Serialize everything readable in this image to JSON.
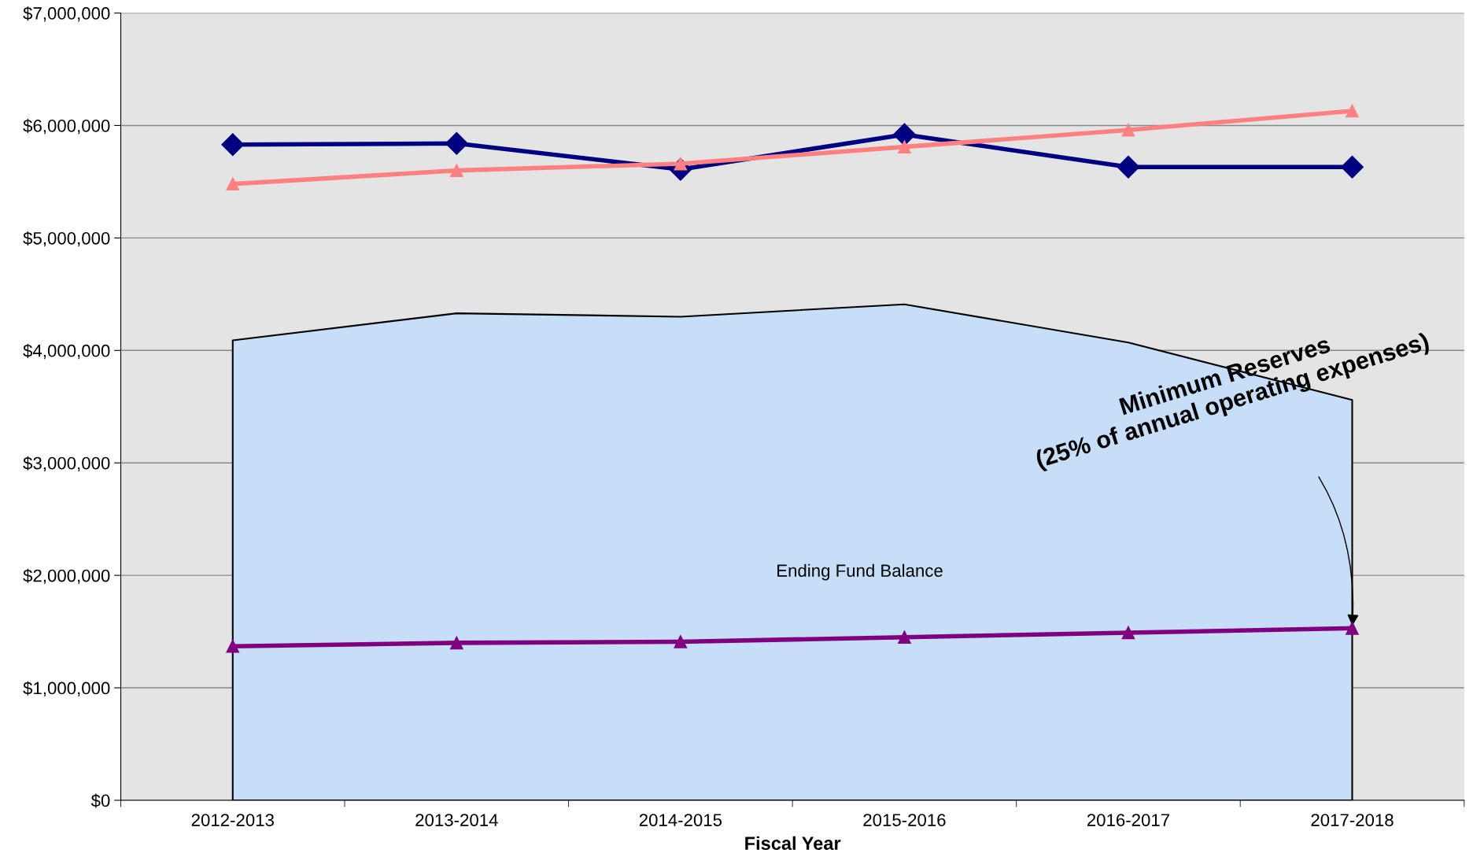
{
  "chart_data": {
    "type": "line",
    "xlabel": "Fiscal Year",
    "categories": [
      "2012-2013",
      "2013-2014",
      "2014-2015",
      "2015-2016",
      "2016-2017",
      "2017-2018"
    ],
    "series": [
      {
        "name": "Ending Fund Balance",
        "type": "area",
        "color": "#c6def7",
        "values": [
          4090000,
          4330000,
          4300000,
          4410000,
          4070000,
          3560000
        ]
      },
      {
        "color": "#000080",
        "marker": "diamond",
        "values": [
          5830000,
          5840000,
          5610000,
          5920000,
          5630000,
          5630000
        ]
      },
      {
        "color": "#ff8080",
        "marker": "triangle",
        "values": [
          5480000,
          5600000,
          5660000,
          5810000,
          5960000,
          6130000
        ]
      },
      {
        "color": "#800080",
        "marker": "triangle",
        "values": [
          1370000,
          1400000,
          1410000,
          1450000,
          1490000,
          1530000
        ]
      }
    ],
    "ylim": [
      0,
      7000000
    ],
    "yticks": [
      {
        "value": 0,
        "label": "$0"
      },
      {
        "value": 1000000,
        "label": "$1,000,000"
      },
      {
        "value": 2000000,
        "label": "$2,000,000"
      },
      {
        "value": 3000000,
        "label": "$3,000,000"
      },
      {
        "value": 4000000,
        "label": "$4,000,000"
      },
      {
        "value": 5000000,
        "label": "$5,000,000"
      },
      {
        "value": 6000000,
        "label": "$6,000,000"
      },
      {
        "value": 7000000,
        "label": "$7,000,000"
      }
    ],
    "grid": "y",
    "legend": false,
    "line_style": "solid",
    "annotations": [
      {
        "text": "Minimum Reserves\n(25% of annual operating expenses)",
        "x": "2017-2018",
        "y": 1530000
      }
    ]
  }
}
